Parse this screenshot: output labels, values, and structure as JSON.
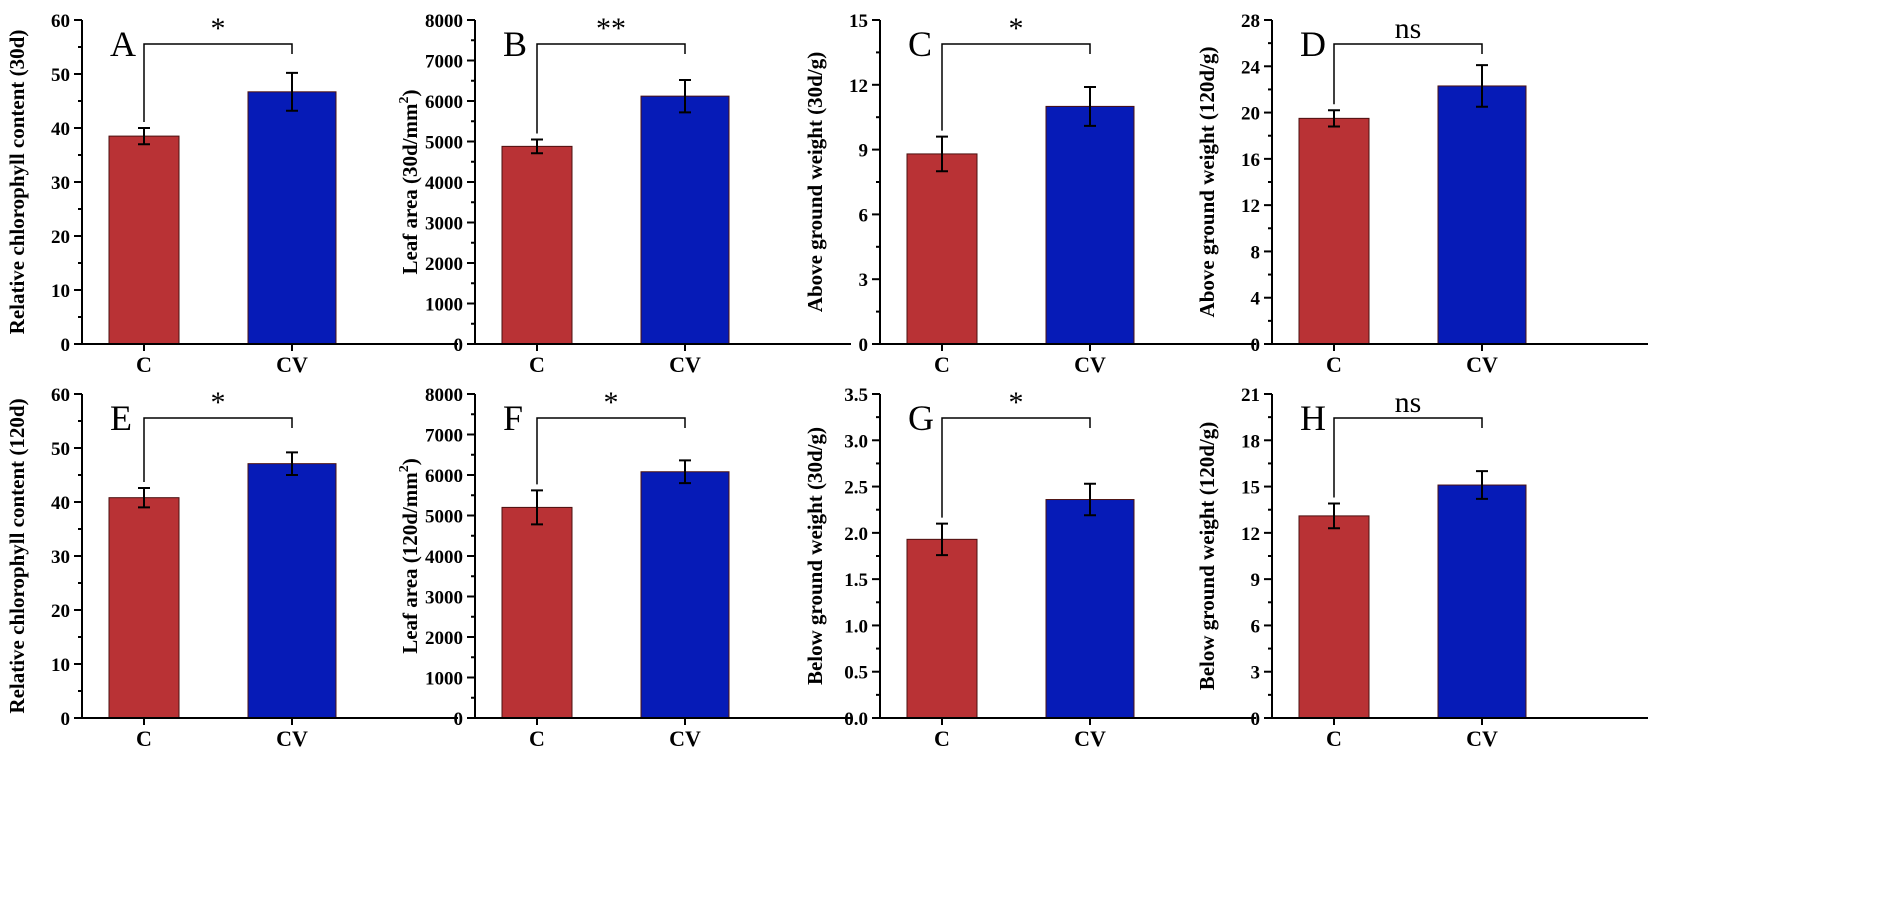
{
  "colors": {
    "C": "#b93235",
    "CV": "#061bb7"
  },
  "chart_data": [
    {
      "type": "bar",
      "panel": "A",
      "ylabel": "Relative chlorophyll content (30d)",
      "categories": [
        "C",
        "CV"
      ],
      "values": [
        38.5,
        46.7
      ],
      "errors": [
        1.5,
        3.5
      ],
      "ylim": [
        0,
        60
      ],
      "yticks": [
        0,
        10,
        20,
        30,
        40,
        50,
        60
      ],
      "significance": "*"
    },
    {
      "type": "bar",
      "panel": "B",
      "ylabel": "Leaf area (30d/mm",
      "ylabel_sup": "2",
      "ylabel_tail": ")",
      "categories": [
        "C",
        "CV"
      ],
      "values": [
        4880,
        6120
      ],
      "errors": [
        170,
        400
      ],
      "ylim": [
        0,
        8000
      ],
      "yticks": [
        0,
        1000,
        2000,
        3000,
        4000,
        5000,
        6000,
        7000,
        8000
      ],
      "significance": "**"
    },
    {
      "type": "bar",
      "panel": "C",
      "ylabel": "Above ground weight (30d/g)",
      "categories": [
        "C",
        "CV"
      ],
      "values": [
        8.8,
        11.0
      ],
      "errors": [
        0.8,
        0.9
      ],
      "ylim": [
        0,
        15
      ],
      "yticks": [
        0,
        3,
        6,
        9,
        12,
        15
      ],
      "significance": "*"
    },
    {
      "type": "bar",
      "panel": "D",
      "ylabel": "Above ground weight (120d/g)",
      "categories": [
        "C",
        "CV"
      ],
      "values": [
        19.5,
        22.3
      ],
      "errors": [
        0.7,
        1.8
      ],
      "ylim": [
        0,
        28
      ],
      "yticks": [
        0,
        4,
        8,
        12,
        16,
        20,
        24,
        28
      ],
      "significance": "ns"
    },
    {
      "type": "bar",
      "panel": "E",
      "ylabel": "Relative chlorophyll content (120d)",
      "categories": [
        "C",
        "CV"
      ],
      "values": [
        40.8,
        47.1
      ],
      "errors": [
        1.8,
        2.1
      ],
      "ylim": [
        0,
        60
      ],
      "yticks": [
        0,
        10,
        20,
        30,
        40,
        50,
        60
      ],
      "significance": "*"
    },
    {
      "type": "bar",
      "panel": "F",
      "ylabel": "Leaf area (120d/mm",
      "ylabel_sup": "2",
      "ylabel_tail": ")",
      "categories": [
        "C",
        "CV"
      ],
      "values": [
        5200,
        6080
      ],
      "errors": [
        420,
        280
      ],
      "ylim": [
        0,
        8000
      ],
      "yticks": [
        0,
        1000,
        2000,
        3000,
        4000,
        5000,
        6000,
        7000,
        8000
      ],
      "significance": "*"
    },
    {
      "type": "bar",
      "panel": "G",
      "ylabel": "Below ground weight (30d/g)",
      "categories": [
        "C",
        "CV"
      ],
      "values": [
        1.93,
        2.36
      ],
      "errors": [
        0.17,
        0.17
      ],
      "ylim": [
        0,
        3.5
      ],
      "yticks": [
        "0.0",
        "0.5",
        "1.0",
        "1.5",
        "2.0",
        "2.5",
        "3.0",
        "3.5"
      ],
      "significance": "*"
    },
    {
      "type": "bar",
      "panel": "H",
      "ylabel": "Below ground weight (120d/g)",
      "categories": [
        "C",
        "CV"
      ],
      "values": [
        13.1,
        15.1
      ],
      "errors": [
        0.8,
        0.9
      ],
      "ylim": [
        0,
        21
      ],
      "yticks": [
        0,
        3,
        6,
        9,
        12,
        15,
        18,
        21
      ],
      "significance": "ns"
    }
  ]
}
